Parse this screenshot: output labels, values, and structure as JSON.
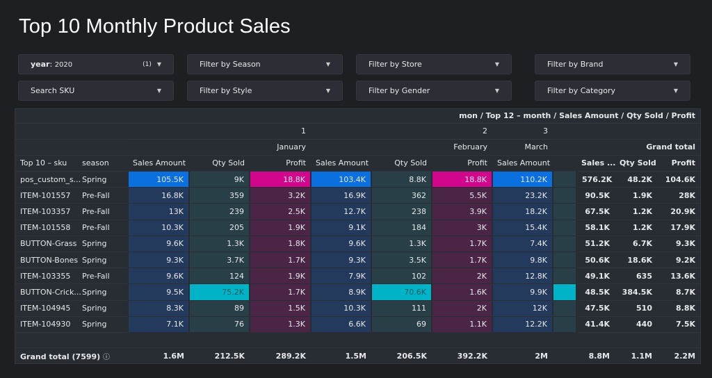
{
  "title": "Top 10 Monthly Product Sales",
  "filters": [
    {
      "label": "year",
      "value": "2020",
      "count": "(1)"
    },
    {
      "label": "Filter by Season"
    },
    {
      "label": "Filter by Store"
    },
    {
      "label": "Filter by Brand"
    },
    {
      "label": "Search SKU"
    },
    {
      "label": "Filter by Style"
    },
    {
      "label": "Filter by Gender"
    },
    {
      "label": "Filter by Category"
    }
  ],
  "table": {
    "breadcrumb": "mon / Top 12 – month / Sales Amount / Qty Sold / Profit",
    "month_numbers": [
      "1",
      "2",
      "3"
    ],
    "month_names": [
      "January",
      "February",
      "March"
    ],
    "grand_total_label": "Grand total",
    "headers": [
      "Top 10 – sku",
      "season",
      "Sales Amount",
      "Qty Sold",
      "Profit",
      "Sales Amount",
      "Qty Sold",
      "Profit",
      "Sales Amount",
      "",
      "Sales ...",
      "Qty Sold",
      "Profit"
    ],
    "rows": [
      [
        "pos_custom_s...",
        "Spring",
        "105.5K",
        "9K",
        "18.8K",
        "103.4K",
        "8.8K",
        "18.8K",
        "110.2K",
        "",
        "576.2K",
        "48.2K",
        "104.6K"
      ],
      [
        "ITEM-101557",
        "Pre-Fall",
        "16.8K",
        "359",
        "3.2K",
        "16.9K",
        "362",
        "5.5K",
        "23.2K",
        "",
        "90.5K",
        "1.9K",
        "28K"
      ],
      [
        "ITEM-103357",
        "Pre-Fall",
        "13K",
        "239",
        "2.5K",
        "12.7K",
        "238",
        "3.9K",
        "18.2K",
        "",
        "67.5K",
        "1.2K",
        "20.9K"
      ],
      [
        "ITEM-101558",
        "Pre-Fall",
        "10.3K",
        "205",
        "1.9K",
        "9.1K",
        "184",
        "3K",
        "15.4K",
        "",
        "58.1K",
        "1.2K",
        "17.9K"
      ],
      [
        "BUTTON-Grass",
        "Spring",
        "9.6K",
        "1.3K",
        "1.8K",
        "9.6K",
        "1.3K",
        "1.7K",
        "7.4K",
        "",
        "51.2K",
        "6.7K",
        "9.3K"
      ],
      [
        "BUTTON-Bones",
        "Spring",
        "9.3K",
        "3.7K",
        "1.7K",
        "9.3K",
        "3.5K",
        "1.7K",
        "9.8K",
        "",
        "50.6K",
        "18.6K",
        "9.2K"
      ],
      [
        "ITEM-103355",
        "Pre-Fall",
        "9.6K",
        "124",
        "1.9K",
        "7.9K",
        "102",
        "2K",
        "12.8K",
        "",
        "49.1K",
        "635",
        "13.6K"
      ],
      [
        "BUTTON-Crick...",
        "Spring",
        "9.5K",
        "75.2K",
        "1.7K",
        "8.9K",
        "70.6K",
        "1.6K",
        "9.9K",
        "",
        "48.5K",
        "384.5K",
        "8.7K"
      ],
      [
        "ITEM-104945",
        "Spring",
        "8.3K",
        "89",
        "1.5K",
        "10.3K",
        "111",
        "2K",
        "12K",
        "",
        "47.5K",
        "510",
        "8.8K"
      ],
      [
        "ITEM-104930",
        "Spring",
        "7.1K",
        "76",
        "1.3K",
        "6.6K",
        "69",
        "1.1K",
        "12.2K",
        "",
        "41.4K",
        "440",
        "7.5K"
      ]
    ],
    "highlight_row_mar_qty": 7,
    "footer": {
      "label": "Grand total (7599)",
      "values": [
        "1.6M",
        "212.5K",
        "289.2K",
        "1.5M",
        "206.5K",
        "392.2K",
        "2M",
        "",
        "8.8M",
        "1.1M",
        "2.2M"
      ]
    }
  },
  "colors": {
    "sales_max": "#0a6fdf",
    "sales_low": "#243a5c",
    "qty_max": "#00b3c7",
    "qty_low": "#283f48",
    "profit_max": "#d2068c",
    "profit_low": "#4a2546"
  }
}
